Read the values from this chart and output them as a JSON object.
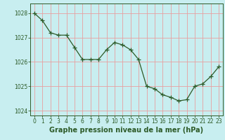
{
  "x": [
    0,
    1,
    2,
    3,
    4,
    5,
    6,
    7,
    8,
    9,
    10,
    11,
    12,
    13,
    14,
    15,
    16,
    17,
    18,
    19,
    20,
    21,
    22,
    23
  ],
  "y": [
    1028.0,
    1027.7,
    1027.2,
    1027.1,
    1027.1,
    1026.6,
    1026.1,
    1026.1,
    1026.1,
    1026.5,
    1026.8,
    1026.7,
    1026.5,
    1026.1,
    1025.0,
    1024.9,
    1024.65,
    1024.55,
    1024.4,
    1024.45,
    1025.0,
    1025.1,
    1025.4,
    1025.8
  ],
  "line_color": "#2d5a27",
  "marker_color": "#2d5a27",
  "bg_color": "#c8eef0",
  "grid_color": "#e8a0a0",
  "text_color": "#2d5a27",
  "xlabel": "Graphe pression niveau de la mer (hPa)",
  "ylim": [
    1023.8,
    1028.4
  ],
  "yticks": [
    1024,
    1025,
    1026,
    1027,
    1028
  ],
  "xticks": [
    0,
    1,
    2,
    3,
    4,
    5,
    6,
    7,
    8,
    9,
    10,
    11,
    12,
    13,
    14,
    15,
    16,
    17,
    18,
    19,
    20,
    21,
    22,
    23
  ],
  "tick_fontsize": 5.5,
  "xlabel_fontsize": 7.0
}
